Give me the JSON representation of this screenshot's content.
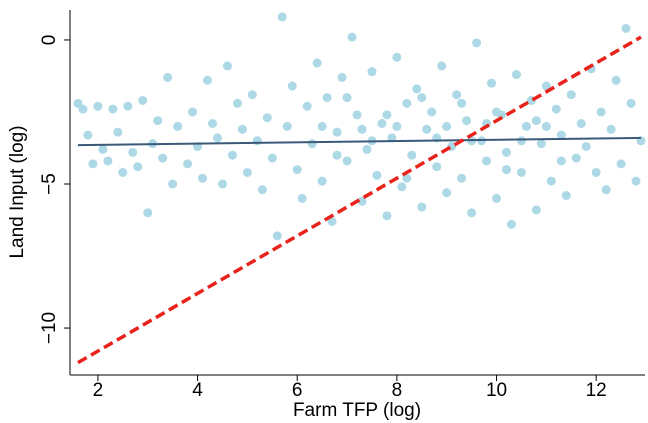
{
  "chart_data": {
    "type": "scatter",
    "xlabel": "Farm TFP (log)",
    "ylabel": "Land Input (log)",
    "xlim": [
      1.44,
      12.98
    ],
    "ylim": [
      -11.63,
      1.04
    ],
    "xticks": [
      2,
      4,
      6,
      8,
      10,
      12
    ],
    "yticks": [
      {
        "value": -10,
        "label": "−10"
      },
      {
        "value": -5,
        "label": "−5"
      },
      0
    ],
    "color": "#add8e6",
    "x": [
      1.6,
      1.7,
      1.8,
      1.9,
      2.0,
      2.1,
      2.2,
      2.3,
      2.4,
      2.5,
      2.6,
      2.7,
      2.8,
      2.9,
      3.0,
      3.1,
      3.2,
      3.3,
      3.4,
      3.5,
      3.6,
      3.8,
      3.9,
      4.0,
      4.1,
      4.2,
      4.3,
      4.4,
      4.5,
      4.6,
      4.7,
      4.8,
      4.9,
      5.0,
      5.1,
      5.2,
      5.3,
      5.4,
      5.5,
      5.6,
      5.7,
      5.8,
      5.9,
      6.0,
      6.1,
      6.2,
      6.3,
      6.4,
      6.5,
      6.6,
      6.7,
      6.8,
      6.9,
      7.0,
      7.1,
      7.2,
      7.3,
      7.4,
      7.5,
      7.6,
      7.7,
      7.8,
      7.9,
      8.0,
      8.1,
      8.2,
      8.3,
      8.4,
      8.5,
      8.6,
      8.7,
      8.8,
      8.9,
      9.0,
      9.1,
      9.2,
      9.3,
      9.4,
      9.5,
      9.6,
      9.7,
      9.8,
      9.9,
      10.0,
      10.1,
      10.2,
      10.3,
      10.4,
      10.5,
      10.6,
      10.7,
      10.8,
      10.9,
      11.0,
      11.1,
      11.2,
      11.3,
      11.4,
      11.5,
      11.6,
      11.7,
      11.8,
      11.9,
      12.0,
      12.1,
      12.2,
      12.3,
      12.4,
      12.5,
      12.6,
      12.7,
      12.8,
      12.9,
      6.5,
      7.0,
      7.5,
      8.0,
      8.5,
      9.0,
      9.5,
      10.0,
      10.5,
      11.0,
      8.2,
      9.3,
      7.3,
      10.2,
      6.8,
      9.8,
      8.8,
      7.8,
      10.8,
      11.3
    ],
    "y": [
      -2.2,
      -2.4,
      -3.3,
      -4.3,
      -2.3,
      -3.8,
      -4.2,
      -2.4,
      -3.2,
      -4.6,
      -2.3,
      -3.9,
      -4.4,
      -2.1,
      -6.0,
      -3.6,
      -2.8,
      -4.1,
      -1.3,
      -5.0,
      -3.0,
      -4.3,
      -2.5,
      -3.7,
      -4.8,
      -1.4,
      -2.9,
      -3.4,
      -5.0,
      -0.9,
      -4.0,
      -2.2,
      -3.1,
      -4.6,
      -1.9,
      -3.5,
      -5.2,
      -2.7,
      -4.1,
      -6.8,
      0.8,
      -3.0,
      -1.6,
      -4.5,
      -5.5,
      -2.3,
      -3.6,
      -0.8,
      -4.9,
      -2.0,
      -6.3,
      -3.2,
      -1.3,
      -4.2,
      0.1,
      -2.6,
      -5.6,
      -3.8,
      -1.1,
      -4.7,
      -2.9,
      -6.1,
      -3.4,
      -0.6,
      -5.1,
      -2.2,
      -4.0,
      -1.7,
      -5.8,
      -3.1,
      -2.5,
      -4.4,
      -0.9,
      -5.3,
      -3.7,
      -1.9,
      -4.8,
      -2.8,
      -6.0,
      -0.1,
      -3.5,
      -4.2,
      -1.5,
      -5.5,
      -2.6,
      -3.9,
      -6.4,
      -1.2,
      -4.6,
      -3.0,
      -2.1,
      -5.9,
      -3.6,
      -1.6,
      -4.9,
      -2.4,
      -3.3,
      -5.4,
      -1.9,
      -4.1,
      -2.9,
      -3.7,
      -1.0,
      -4.6,
      -2.5,
      -5.2,
      -3.1,
      -1.4,
      -4.3,
      0.4,
      -2.2,
      -4.9,
      -3.5,
      -3.0,
      -2.0,
      -3.5,
      -3.0,
      -2.0,
      -3.0,
      -3.5,
      -2.5,
      -3.5,
      -3.0,
      -4.8,
      -2.2,
      -3.1,
      -4.5,
      -4.0,
      -2.9,
      -3.4,
      -2.6,
      -2.8,
      -4.2
    ],
    "lines": [
      {
        "x": [
          1.6,
          12.9
        ],
        "y": [
          -3.65,
          -3.4
        ],
        "color": "#3a5a78",
        "style": "solid"
      },
      {
        "x": [
          1.6,
          12.9
        ],
        "y": [
          -11.2,
          0.1
        ],
        "color": "#e8231b",
        "style": "dashed"
      }
    ]
  }
}
